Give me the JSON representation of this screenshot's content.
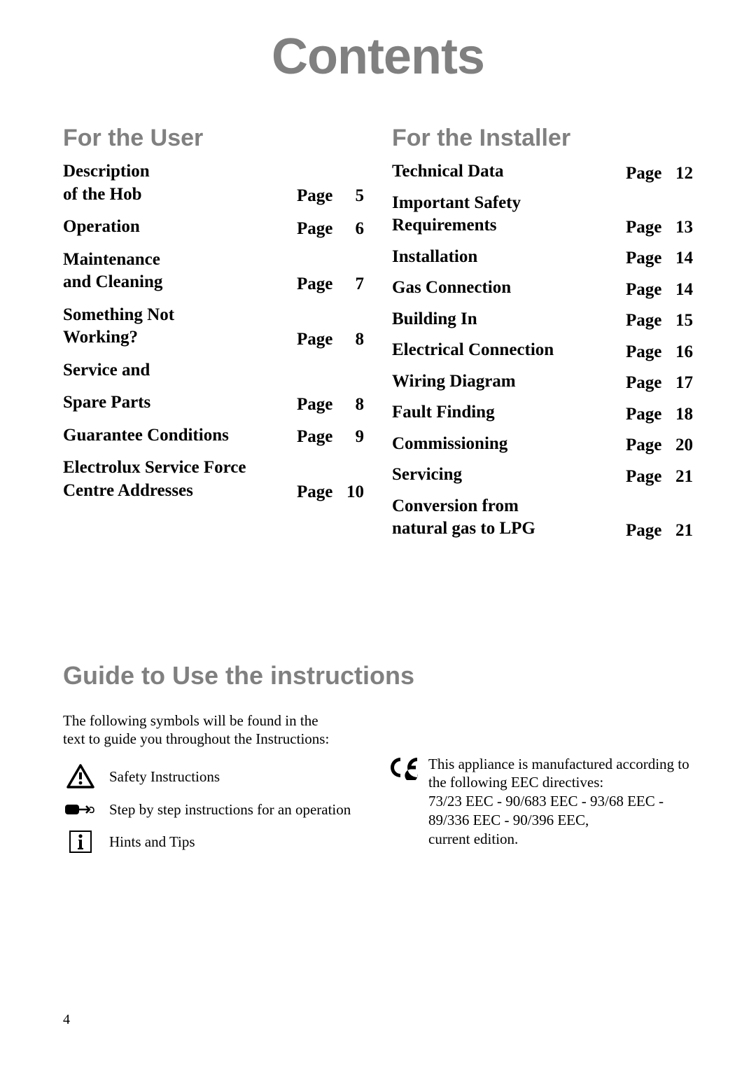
{
  "title": "Contents",
  "left_section": {
    "heading": "For the User",
    "items": [
      {
        "label": "Description\nof the Hob",
        "page_word": "Page",
        "page_num": "5"
      },
      {
        "label": "Operation",
        "page_word": "Page",
        "page_num": "6"
      },
      {
        "label": "Maintenance\nand Cleaning",
        "page_word": "Page",
        "page_num": "7"
      },
      {
        "label": "Something Not\nWorking?",
        "page_word": "Page",
        "page_num": "8"
      },
      {
        "label": "Service and",
        "page_word": "",
        "page_num": ""
      },
      {
        "label": "Spare Parts",
        "page_word": "Page",
        "page_num": "8"
      },
      {
        "label": "Guarantee Conditions",
        "page_word": "Page",
        "page_num": "9"
      },
      {
        "label": "Electrolux Service Force\nCentre Addresses",
        "page_word": "Page",
        "page_num": "10"
      }
    ]
  },
  "right_section": {
    "heading": "For the Installer",
    "items": [
      {
        "label": "Technical Data",
        "page_word": "Page",
        "page_num": "12"
      },
      {
        "label": "Important Safety\nRequirements",
        "page_word": "Page",
        "page_num": "13"
      },
      {
        "label": "Installation",
        "page_word": "Page",
        "page_num": "14"
      },
      {
        "label": "Gas Connection",
        "page_word": "Page",
        "page_num": "14"
      },
      {
        "label": "Building In",
        "page_word": "Page",
        "page_num": "15"
      },
      {
        "label": "Electrical Connection",
        "page_word": "Page",
        "page_num": "16"
      },
      {
        "label": "Wiring Diagram",
        "page_word": "Page",
        "page_num": "17"
      },
      {
        "label": "Fault Finding",
        "page_word": "Page",
        "page_num": "18"
      },
      {
        "label": "Commissioning",
        "page_word": "Page",
        "page_num": "20"
      },
      {
        "label": "Servicing",
        "page_word": "Page",
        "page_num": "21"
      },
      {
        "label": "Conversion from\nnatural gas to LPG",
        "page_word": "Page",
        "page_num": "21"
      }
    ]
  },
  "guide": {
    "heading": "Guide to Use the instructions",
    "intro": "The following symbols will be found in the text to guide you throughout the Instructions:",
    "legend": [
      {
        "icon": "warning",
        "text": "Safety Instructions"
      },
      {
        "icon": "hand",
        "text": "Step by step instructions for an operation"
      },
      {
        "icon": "info",
        "text": "Hints and Tips"
      }
    ],
    "ce_text": "This appliance is manufactured according to the following EEC directives:\n73/23 EEC - 90/683 EEC - 93/68 EEC - 89/336 EEC - 90/396 EEC,\ncurrent edition."
  },
  "page_number": "4",
  "colors": {
    "heading_gray": "#808080",
    "text": "#000000",
    "background": "#ffffff"
  },
  "typography": {
    "title_fontsize": 72,
    "section_heading_fontsize": 34,
    "toc_fontsize": 25,
    "guide_heading_fontsize": 36,
    "body_fontsize": 21
  }
}
